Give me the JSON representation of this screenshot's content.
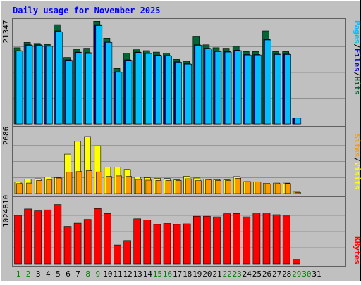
{
  "colors": {
    "background": "#c0c0c0",
    "title": "#0000ff",
    "hits": "#006633",
    "files": "#0000cc",
    "pages": "#00bfff",
    "visits": "#ffff00",
    "sites": "#ff9900",
    "kbytes": "#ff0000",
    "weekend_day": "#008000",
    "weekday": "#000000"
  },
  "chart_data": [
    {
      "type": "bar",
      "title": "Daily usage for November 2025",
      "days": [
        1,
        2,
        3,
        4,
        5,
        6,
        7,
        8,
        9,
        10,
        11,
        12,
        13,
        14,
        15,
        16,
        17,
        18,
        19,
        20,
        21,
        22,
        23,
        24,
        25,
        26,
        27,
        28,
        29,
        30,
        31
      ],
      "weekend_days": [
        1,
        2,
        8,
        9,
        15,
        16,
        22,
        23,
        29,
        30
      ],
      "ymax_label": "21347",
      "ylim": [
        0,
        21347
      ],
      "legend": [
        "Hits",
        "Files",
        "Pages"
      ],
      "series": [
        {
          "name": "Hits",
          "values": [
            15800,
            16900,
            16700,
            16500,
            20600,
            13800,
            15500,
            15700,
            21300,
            17800,
            11500,
            14700,
            15400,
            15200,
            14900,
            14700,
            13400,
            13000,
            18200,
            16400,
            15800,
            15700,
            16100,
            15000,
            15000,
            19300,
            15000,
            15000,
            1200,
            0,
            0
          ]
        },
        {
          "name": "Files",
          "values": [
            15200,
            16400,
            16400,
            16200,
            19300,
            13300,
            14900,
            14800,
            20600,
            17100,
            10800,
            13300,
            14900,
            14700,
            14300,
            14200,
            12900,
            12500,
            16400,
            15700,
            15100,
            15000,
            15300,
            14400,
            14400,
            17500,
            14500,
            14500,
            1200,
            0,
            0
          ]
        },
        {
          "name": "Pages",
          "values": [
            15100,
            16300,
            16300,
            16100,
            19100,
            13200,
            14800,
            14600,
            20400,
            16900,
            10700,
            13200,
            14800,
            14600,
            14200,
            14100,
            12800,
            12400,
            16300,
            15600,
            15000,
            14900,
            15200,
            14300,
            14300,
            17400,
            14400,
            14400,
            1200,
            0,
            0
          ]
        }
      ]
    },
    {
      "type": "bar",
      "ymax_label": "2686",
      "ylim": [
        0,
        2686
      ],
      "legend": [
        "Sites",
        "Visits"
      ],
      "series": [
        {
          "name": "Visits",
          "values": [
            490,
            610,
            620,
            690,
            670,
            1650,
            2190,
            2390,
            2000,
            1110,
            1100,
            1010,
            700,
            660,
            640,
            630,
            570,
            730,
            650,
            600,
            580,
            570,
            710,
            500,
            490,
            430,
            440,
            440,
            60,
            0,
            0
          ]
        },
        {
          "name": "Sites",
          "values": [
            420,
            440,
            550,
            570,
            650,
            900,
            920,
            960,
            910,
            720,
            740,
            720,
            590,
            560,
            550,
            550,
            550,
            620,
            540,
            570,
            550,
            550,
            640,
            500,
            480,
            400,
            410,
            420,
            50,
            0,
            0
          ]
        }
      ]
    },
    {
      "type": "bar",
      "ymax_label": "1024810",
      "ylim": [
        0,
        1024810
      ],
      "legend": [
        "KBytes"
      ],
      "series": [
        {
          "name": "KBytes",
          "values": [
            770000,
            870000,
            840000,
            855000,
            940000,
            595000,
            645000,
            705000,
            875000,
            800000,
            300000,
            370000,
            715000,
            695000,
            625000,
            640000,
            625000,
            635000,
            755000,
            755000,
            745000,
            795000,
            800000,
            745000,
            810000,
            810000,
            780000,
            760000,
            70000,
            0,
            0
          ]
        }
      ]
    }
  ]
}
